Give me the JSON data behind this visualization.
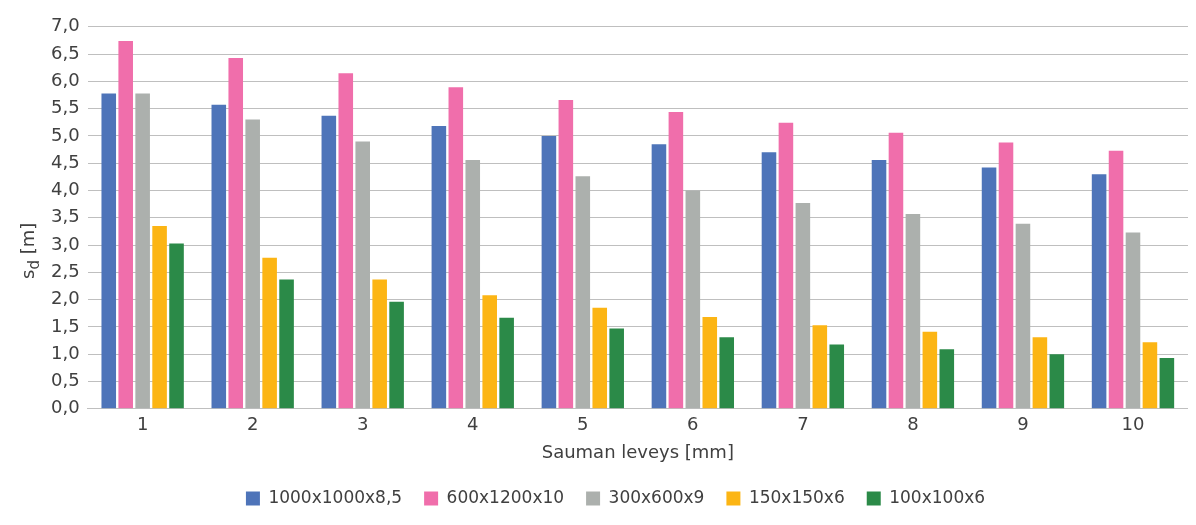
{
  "chart_data": {
    "type": "bar",
    "xlabel": "Sauman leveys [mm]",
    "ylabel": "s$_{d}$ [m]",
    "categories": [
      "1",
      "2",
      "3",
      "4",
      "5",
      "6",
      "7",
      "8",
      "9",
      "10"
    ],
    "series": [
      {
        "name": "1000x1000x8,5",
        "color": "#4e74b9",
        "values": [
          5.78,
          5.57,
          5.37,
          5.18,
          5.0,
          4.85,
          4.7,
          4.56,
          4.42,
          4.3
        ]
      },
      {
        "name": "600x1200x10",
        "color": "#f06eab",
        "values": [
          6.74,
          6.43,
          6.15,
          5.89,
          5.66,
          5.44,
          5.24,
          5.06,
          4.88,
          4.73
        ]
      },
      {
        "name": "300x600x9",
        "color": "#acb0ad",
        "values": [
          5.78,
          5.3,
          4.9,
          4.56,
          4.26,
          4.0,
          3.77,
          3.57,
          3.39,
          3.23
        ]
      },
      {
        "name": "150x150x6",
        "color": "#fcb514",
        "values": [
          3.35,
          2.77,
          2.37,
          2.08,
          1.85,
          1.68,
          1.53,
          1.41,
          1.31,
          1.22
        ]
      },
      {
        "name": "100x100x6",
        "color": "#2b8a48",
        "values": [
          3.03,
          2.37,
          1.96,
          1.67,
          1.47,
          1.31,
          1.18,
          1.09,
          1.0,
          0.93
        ]
      }
    ],
    "ylim": [
      0,
      7
    ],
    "yticks": [
      {
        "value": 0,
        "label": "0,0"
      },
      {
        "value": 0.5,
        "label": "0,5"
      },
      {
        "value": 1,
        "label": "1,0"
      },
      {
        "value": 1.5,
        "label": "1,5"
      },
      {
        "value": 2,
        "label": "2,0"
      },
      {
        "value": 2.5,
        "label": "2,5"
      },
      {
        "value": 3,
        "label": "3,0"
      },
      {
        "value": 3.5,
        "label": "3,5"
      },
      {
        "value": 4,
        "label": "4,0"
      },
      {
        "value": 4.5,
        "label": "4,5"
      },
      {
        "value": 5,
        "label": "5,0"
      },
      {
        "value": 5.5,
        "label": "5,5"
      },
      {
        "value": 6,
        "label": "6,0"
      },
      {
        "value": 6.5,
        "label": "6,5"
      },
      {
        "value": 7,
        "label": "7,0"
      }
    ],
    "grid": "y",
    "legend": "bottom"
  }
}
